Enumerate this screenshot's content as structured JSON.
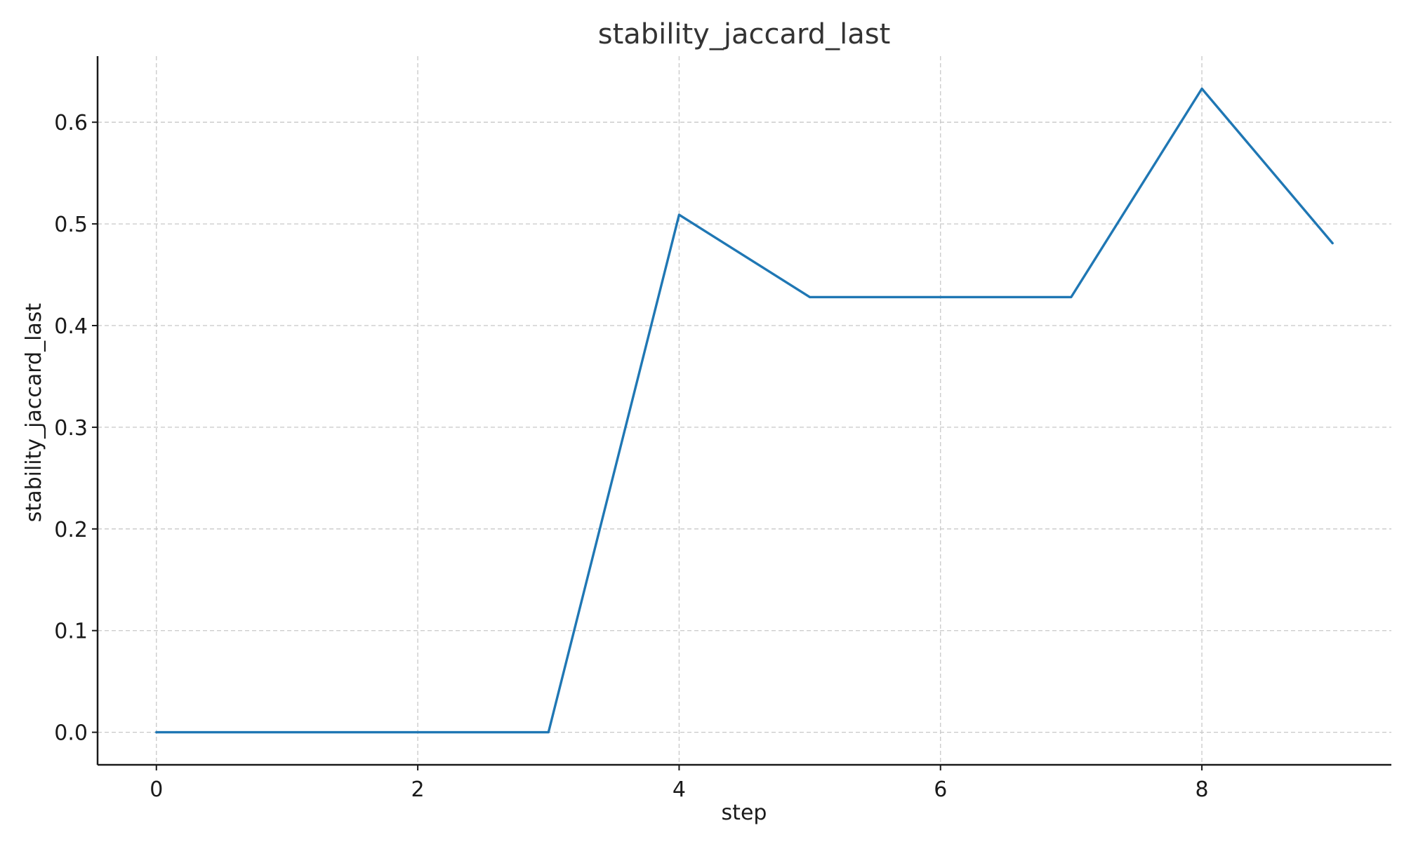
{
  "chart_data": {
    "type": "line",
    "title": "stability_jaccard_last",
    "xlabel": "step",
    "ylabel": "stability_jaccard_last",
    "x": [
      0,
      1,
      2,
      3,
      4,
      5,
      6,
      7,
      8,
      9
    ],
    "series": [
      {
        "values": [
          0.0,
          0.0,
          0.0,
          0.0,
          0.509,
          0.428,
          0.428,
          0.428,
          0.633,
          0.481
        ],
        "color": "#1f77b4"
      }
    ],
    "xlim": [
      -0.45,
      9.45
    ],
    "ylim": [
      -0.032,
      0.665
    ],
    "xticks": [
      0,
      2,
      4,
      6,
      8
    ],
    "xtick_labels": [
      "0",
      "2",
      "4",
      "6",
      "8"
    ],
    "yticks": [
      0.0,
      0.1,
      0.2,
      0.3,
      0.4,
      0.5,
      0.6
    ],
    "ytick_labels": [
      "0.0",
      "0.1",
      "0.2",
      "0.3",
      "0.4",
      "0.5",
      "0.6"
    ],
    "grid": true,
    "grid_style": "dashed",
    "grid_color": "#c8c8c8",
    "text_color": "#1a1a1a",
    "title_color": "#333333",
    "legend": "none"
  }
}
